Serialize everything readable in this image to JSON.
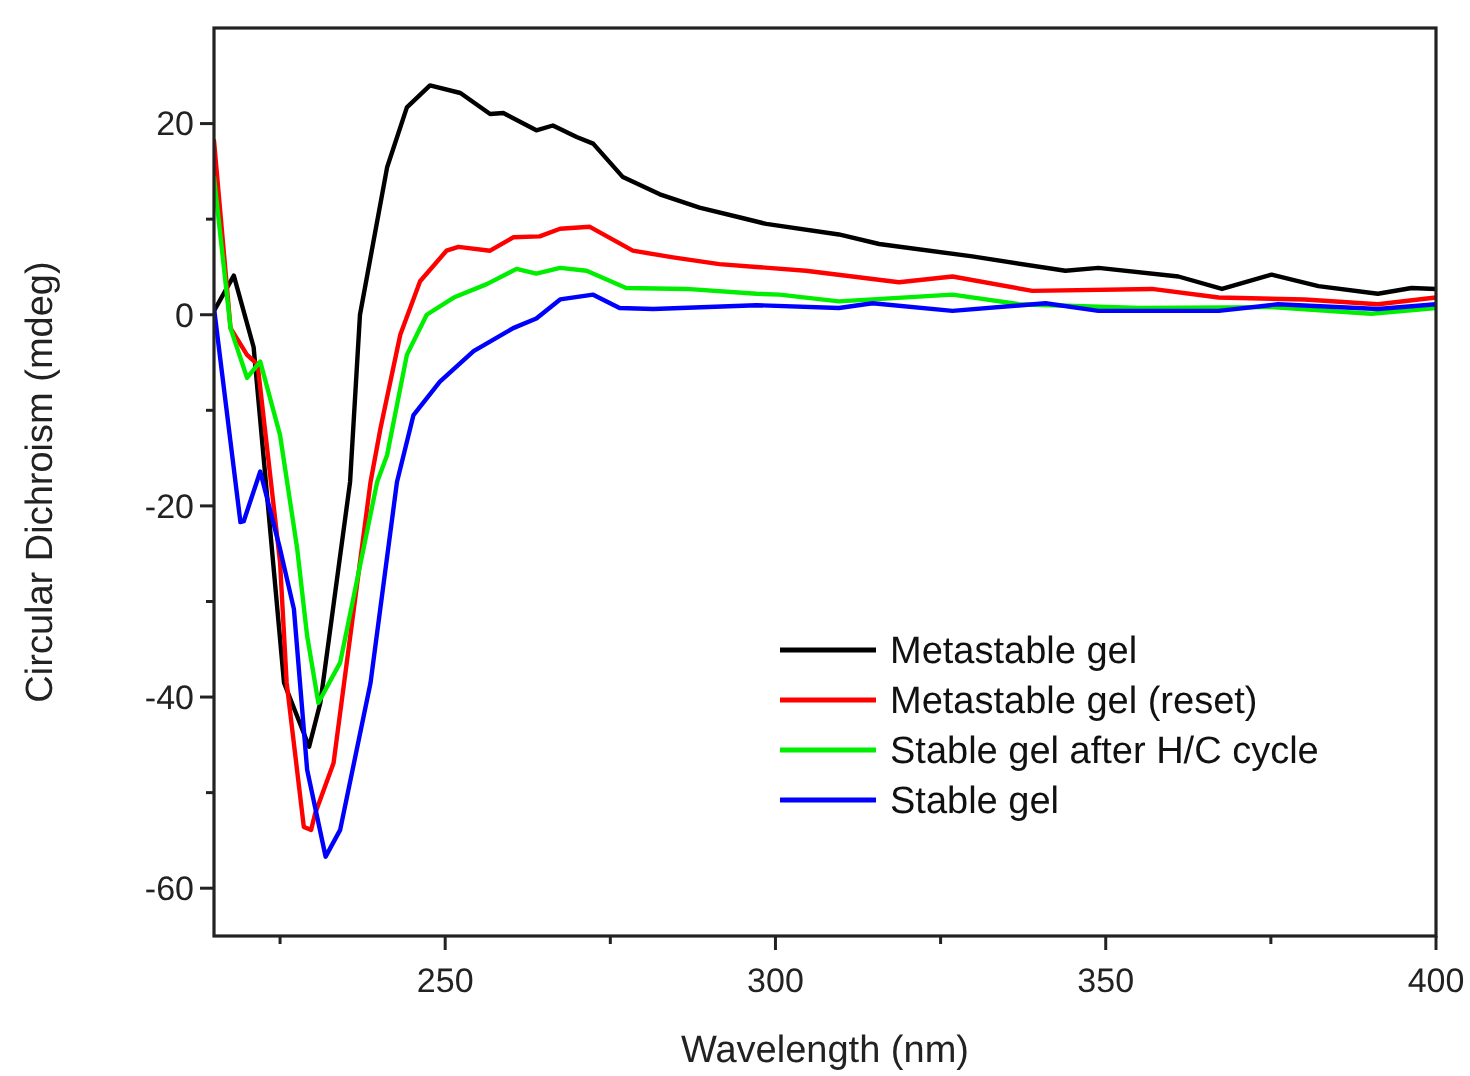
{
  "chart_data": {
    "type": "line",
    "xlabel": "Wavelength (nm)",
    "ylabel": "Circular Dichroism (mdeg)",
    "xlim": [
      215,
      400
    ],
    "xticks": [
      {
        "value": 225,
        "label": null
      },
      250,
      {
        "value": 275,
        "label": null
      },
      300,
      {
        "value": 325,
        "label": null
      },
      350,
      {
        "value": 375,
        "label": null
      },
      400
    ],
    "ylim": [
      -65,
      30
    ],
    "yticks": [
      -60,
      {
        "value": -50,
        "label": null
      },
      -40,
      {
        "value": -30,
        "label": null
      },
      -20,
      {
        "value": -10,
        "label": null
      },
      0,
      {
        "value": 10,
        "label": null
      },
      20
    ],
    "grid": false,
    "legend": "bottom right",
    "marker": "none",
    "line_style": "solid",
    "series": [
      {
        "name": "Metastable gel",
        "color": "#000000",
        "x": [
          215,
          218,
          221,
          225.6,
          229.4,
          231.1,
          235.6,
          237.1,
          241.2,
          244.2,
          247.7,
          252.3,
          256.8,
          258.8,
          263.8,
          266.3,
          269.9,
          272.4,
          276.9,
          282.5,
          288.5,
          294.5,
          298.6,
          309.6,
          315.7,
          329.8,
          343.9,
          348.9,
          361,
          367.6,
          375.1,
          382.2,
          391.2,
          396.3,
          400
        ],
        "values": [
          0.4,
          4.1,
          -3.4,
          -38.5,
          -45.2,
          -40.6,
          -17.5,
          0,
          15.4,
          21.7,
          24,
          23.2,
          21,
          21.1,
          19.3,
          19.8,
          18.6,
          17.9,
          14.4,
          12.6,
          11.2,
          10.2,
          9.5,
          8.4,
          7.4,
          6.1,
          4.6,
          4.9,
          4,
          2.7,
          4.2,
          3,
          2.2,
          2.8,
          2.7
        ]
      },
      {
        "name": "Metastable gel (reset)",
        "color": "#ff0000",
        "x": [
          215,
          217.5,
          220,
          221.6,
          225,
          226,
          228.6,
          229.7,
          230.3,
          233.1,
          238.7,
          240.2,
          243.2,
          246.2,
          250.2,
          252,
          256.8,
          260.3,
          264.3,
          267.4,
          271.9,
          278.4,
          284.5,
          291.5,
          297.1,
          304.6,
          318.7,
          326.8,
          338.9,
          357,
          367.1,
          380.1,
          391.2,
          400
        ],
        "values": [
          18.2,
          -1.4,
          -4.2,
          -5.2,
          -25.9,
          -38.5,
          -53.6,
          -53.9,
          -52.2,
          -46.9,
          -17.5,
          -11.9,
          -2.1,
          3.5,
          6.7,
          7.1,
          6.7,
          8.1,
          8.2,
          9,
          9.2,
          6.7,
          6,
          5.3,
          5,
          4.6,
          3.4,
          4,
          2.5,
          2.7,
          1.8,
          1.6,
          1.1,
          1.8
        ]
      },
      {
        "name": "Stable gel after H/C cycle",
        "color": "#00ee00",
        "x": [
          215,
          217.5,
          220,
          222,
          225,
          227.6,
          229.1,
          230.8,
          234.1,
          239.7,
          241.2,
          244.2,
          247.2,
          251.3,
          256.3,
          260.8,
          263.8,
          267.4,
          271.4,
          277.4,
          286.5,
          297.1,
          300.6,
          309.6,
          326.8,
          336.9,
          355,
          375.1,
          390.2,
          400
        ],
        "values": [
          14.4,
          -1.4,
          -6.6,
          -4.9,
          -12.6,
          -24.5,
          -33.6,
          -40.6,
          -36.4,
          -17.5,
          -14.7,
          -4.2,
          0,
          1.8,
          3.2,
          4.8,
          4.3,
          4.9,
          4.6,
          2.8,
          2.7,
          2.2,
          2.1,
          1.4,
          2.1,
          1.1,
          0.7,
          0.8,
          0.1,
          0.7
        ]
      },
      {
        "name": "Stable gel",
        "color": "#0000ff",
        "x": [
          215,
          219,
          219.5,
          222,
          225,
          227.1,
          229.1,
          231.9,
          234.1,
          238.7,
          242.7,
          245.2,
          249.2,
          254.3,
          260.3,
          263.8,
          267.4,
          272.4,
          276.4,
          281.5,
          297.1,
          309.6,
          314.7,
          326.8,
          340.9,
          348.9,
          367.1,
          376.1,
          391.2,
          400
        ],
        "values": [
          0.7,
          -21.7,
          -21.6,
          -16.4,
          -24.5,
          -30.8,
          -47.6,
          -56.7,
          -53.9,
          -38.5,
          -17.5,
          -10.5,
          -7,
          -3.8,
          -1.4,
          -0.4,
          1.6,
          2.1,
          0.7,
          0.6,
          1,
          0.7,
          1.2,
          0.4,
          1.2,
          0.4,
          0.4,
          1.1,
          0.6,
          1.1
        ]
      }
    ]
  }
}
